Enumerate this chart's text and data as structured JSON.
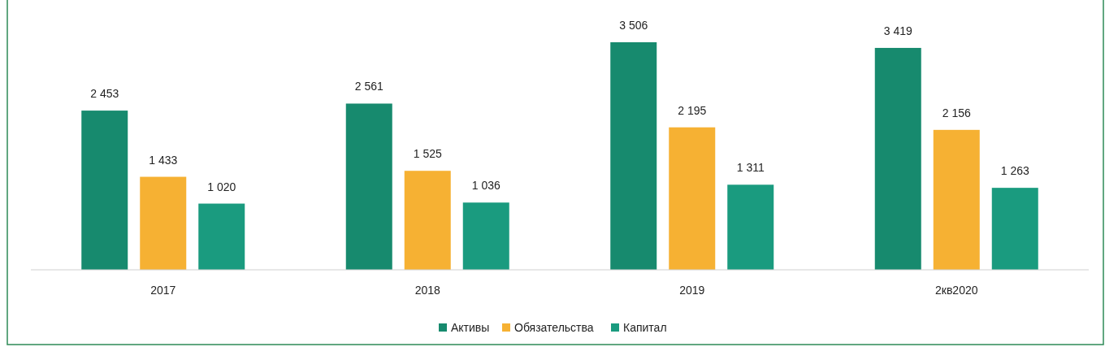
{
  "chart_data": {
    "type": "bar",
    "categories": [
      "2017",
      "2018",
      "2019",
      "2кв2020"
    ],
    "series": [
      {
        "name": "Активы",
        "color": "#178a6e",
        "values": [
          2453,
          2561,
          3506,
          3419
        ],
        "value_labels": [
          "2 453",
          "2 561",
          "3 506",
          "3 419"
        ]
      },
      {
        "name": "Обязательства",
        "color": "#f6b133",
        "values": [
          1433,
          1525,
          2195,
          2156
        ],
        "value_labels": [
          "1 433",
          "1 525",
          "2 195",
          "2 156"
        ]
      },
      {
        "name": "Капитал",
        "color": "#1a9b7f",
        "values": [
          1020,
          1036,
          1311,
          1263
        ],
        "value_labels": [
          "1 020",
          "1 036",
          "1 311",
          "1 263"
        ]
      }
    ],
    "legend": "bottom"
  }
}
